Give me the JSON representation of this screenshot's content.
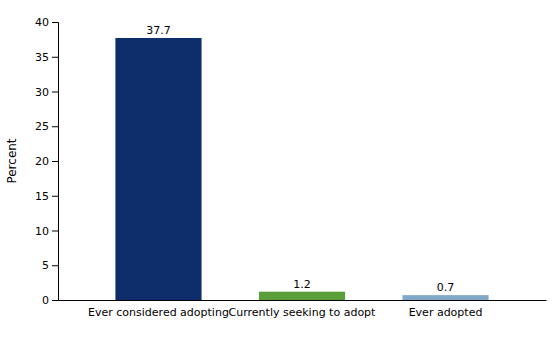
{
  "chart_data": {
    "type": "bar",
    "categories": [
      "Ever considered adopting",
      "Currently seeking to adopt",
      "Ever adopted"
    ],
    "values": [
      37.7,
      1.2,
      0.7
    ],
    "colors": [
      "#0d2d6b",
      "#5a9e3a",
      "#7fa8c9"
    ],
    "ylabel": "Percent",
    "ylim": [
      0,
      40
    ],
    "yticks": [
      0,
      5,
      10,
      15,
      20,
      25,
      30,
      35,
      40
    ],
    "data_labels": true,
    "grid": false
  }
}
